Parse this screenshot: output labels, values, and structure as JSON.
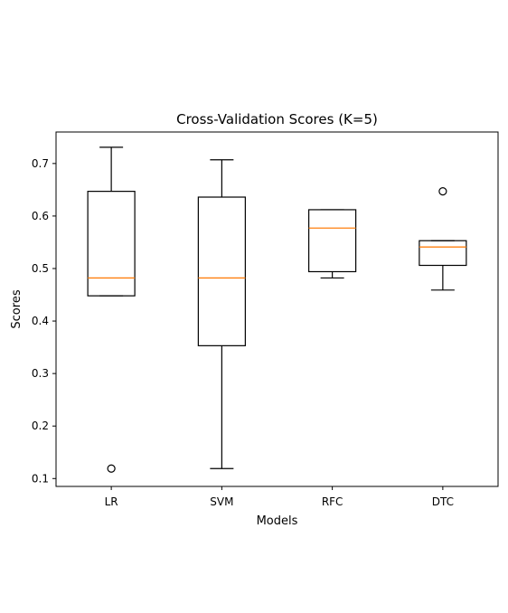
{
  "chart_data": {
    "type": "box",
    "title": "Cross-Validation Scores (K=5)",
    "xlabel": "Models",
    "ylabel": "Scores",
    "ylim": [
      0.085,
      0.76
    ],
    "yticks": [
      0.1,
      0.2,
      0.3,
      0.4,
      0.5,
      0.6,
      0.7
    ],
    "yticklabels": [
      "0.1",
      "0.2",
      "0.3",
      "0.4",
      "0.5",
      "0.6",
      "0.7"
    ],
    "categories": [
      "LR",
      "SVM",
      "RFC",
      "DTC"
    ],
    "boxes": [
      {
        "name": "LR",
        "whisker_low": 0.448,
        "q1": 0.448,
        "median": 0.482,
        "q3": 0.647,
        "whisker_high": 0.731,
        "outliers": [
          0.119
        ]
      },
      {
        "name": "SVM",
        "whisker_low": 0.119,
        "q1": 0.353,
        "median": 0.482,
        "q3": 0.636,
        "whisker_high": 0.707,
        "outliers": []
      },
      {
        "name": "RFC",
        "whisker_low": 0.482,
        "q1": 0.494,
        "median": 0.577,
        "q3": 0.612,
        "whisker_high": 0.612,
        "outliers": []
      },
      {
        "name": "DTC",
        "whisker_low": 0.459,
        "q1": 0.506,
        "median": 0.541,
        "q3": 0.553,
        "whisker_high": 0.553,
        "outliers": [
          0.647
        ]
      }
    ],
    "colors": {
      "box": "#000000",
      "median": "#ff7f0e"
    },
    "grid": false,
    "legend": "none"
  }
}
